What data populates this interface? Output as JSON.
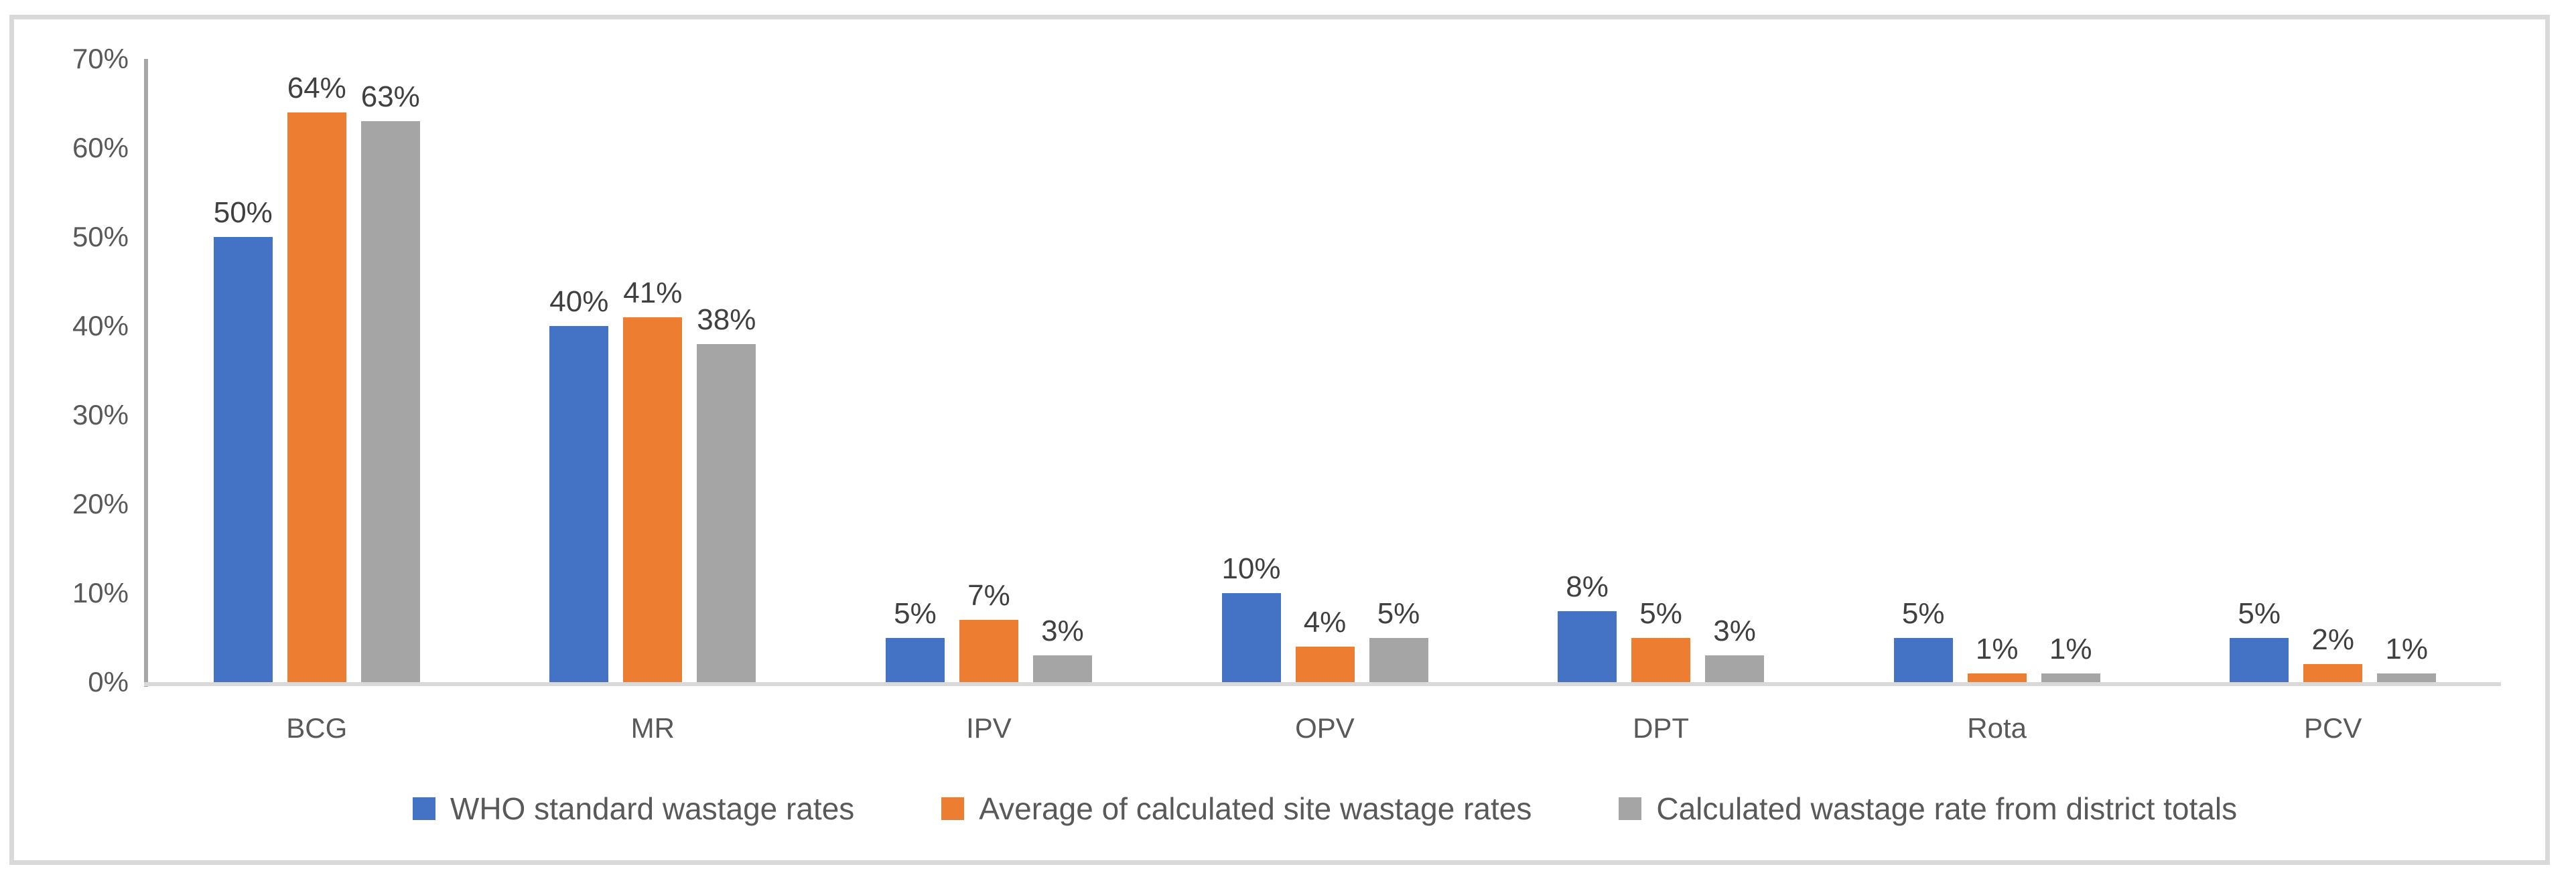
{
  "chart_data": {
    "type": "bar",
    "title": "",
    "xlabel": "",
    "ylabel": "",
    "categories": [
      "BCG",
      "MR",
      "IPV",
      "OPV",
      "DPT",
      "Rota",
      "PCV"
    ],
    "series": [
      {
        "name": "WHO standard wastage rates",
        "color": "#4472C4",
        "values": [
          50,
          40,
          5,
          10,
          8,
          5,
          5
        ],
        "labels": [
          "50%",
          "40%",
          "5%",
          "10%",
          "8%",
          "5%",
          "5%"
        ]
      },
      {
        "name": "Average of calculated site wastage rates",
        "color": "#ED7D31",
        "values": [
          64,
          41,
          7,
          4,
          5,
          1,
          2
        ],
        "labels": [
          "64%",
          "41%",
          "7%",
          "4%",
          "5%",
          "1%",
          "2%"
        ]
      },
      {
        "name": "Calculated wastage rate from district totals",
        "color": "#A5A5A5",
        "values": [
          63,
          38,
          3,
          5,
          3,
          1,
          1
        ],
        "labels": [
          "63%",
          "38%",
          "3%",
          "5%",
          "3%",
          "1%",
          "1%"
        ]
      }
    ],
    "ylim": [
      0,
      70
    ],
    "ytick_labels": [
      "0%",
      "10%",
      "20%",
      "30%",
      "40%",
      "50%",
      "60%",
      "70%"
    ],
    "grid": false,
    "legend_position": "bottom",
    "data_labels_visible": true
  },
  "colors": {
    "background": "#FFFFFF",
    "frame_border": "#D9D9D9",
    "axis_line": "#A6A6A6",
    "baseline": "#D9D9D9",
    "tick_text": "#595959",
    "category_text": "#595959",
    "data_label_text": "#404040",
    "legend_text": "#595959"
  }
}
